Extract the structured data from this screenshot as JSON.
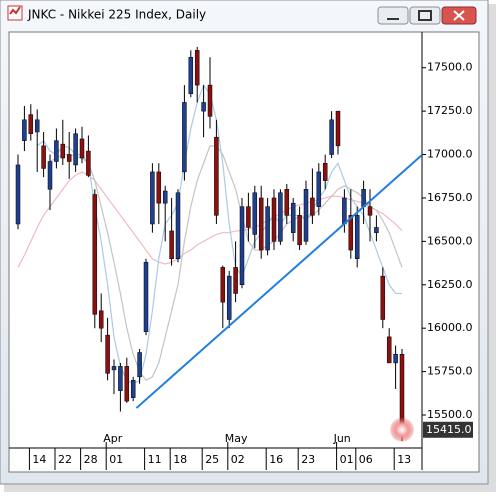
{
  "window": {
    "title": "JNKC - Nikkei 225 Index, Daily"
  },
  "chart_data": {
    "type": "candlestick",
    "categories": [
      null,
      "14",
      null,
      null,
      null,
      "22",
      null,
      null,
      null,
      "28",
      null,
      null,
      null,
      "01",
      null,
      null,
      null,
      null,
      null,
      "11",
      null,
      null,
      null,
      "18",
      null,
      null,
      null,
      null,
      "25",
      null,
      null,
      null,
      "02",
      null,
      null,
      null,
      null,
      null,
      "16",
      null,
      null,
      null,
      null,
      "23",
      null,
      null,
      null,
      null,
      null,
      "01",
      null,
      null,
      "06",
      null,
      null,
      null,
      null,
      null,
      "13",
      null,
      null
    ],
    "months": [
      null,
      null,
      null,
      null,
      null,
      null,
      null,
      null,
      null,
      null,
      null,
      null,
      null,
      "Apr",
      null,
      null,
      null,
      null,
      null,
      null,
      null,
      null,
      null,
      null,
      null,
      null,
      null,
      null,
      null,
      null,
      null,
      null,
      "May",
      null,
      null,
      null,
      null,
      null,
      null,
      null,
      null,
      null,
      null,
      null,
      null,
      null,
      null,
      null,
      null,
      "Jun",
      null,
      null,
      null,
      null,
      null,
      null,
      null,
      null,
      null,
      null,
      null
    ],
    "open": [
      16600,
      17080,
      17230,
      17130,
      17050,
      16800,
      16960,
      17060,
      17000,
      16940,
      17090,
      17020,
      16770,
      16100,
      15960,
      15760,
      15640,
      15780,
      15600,
      15720,
      15980,
      16600,
      16900,
      16720,
      16560,
      16400,
      16900,
      17350,
      17600,
      17250,
      17400,
      17100,
      16350,
      16050,
      16350,
      16250,
      16700,
      16540,
      16750,
      16450,
      16750,
      16500,
      16800,
      16550,
      16650,
      16500,
      16750,
      16700,
      16950,
      17000,
      17250,
      16600,
      16650,
      16400,
      16700,
      16700,
      16550,
      16300,
      15950,
      15800,
      15850
    ],
    "high": [
      17000,
      17280,
      17290,
      17260,
      17130,
      17000,
      17150,
      17200,
      17130,
      17150,
      17160,
      17110,
      16800,
      16200,
      16060,
      15820,
      15800,
      15830,
      15720,
      15880,
      16400,
      16950,
      16950,
      16820,
      16750,
      16800,
      17400,
      17600,
      17620,
      17400,
      17560,
      17200,
      16360,
      16330,
      16500,
      16750,
      16780,
      16820,
      16820,
      16750,
      16800,
      16800,
      16830,
      16750,
      16700,
      16850,
      16920,
      16950,
      17000,
      17250,
      17250,
      16800,
      16800,
      16700,
      16850,
      16800,
      16650,
      16350,
      16000,
      15900,
      15880
    ],
    "low": [
      16570,
      17020,
      17080,
      16900,
      16870,
      16680,
      16920,
      16940,
      16860,
      16900,
      16950,
      16870,
      16000,
      15920,
      15700,
      15620,
      15520,
      15570,
      15580,
      15680,
      15960,
      16550,
      16600,
      16500,
      16360,
      16380,
      16850,
      17330,
      17300,
      17100,
      17150,
      16600,
      16000,
      16000,
      16150,
      16230,
      16500,
      16460,
      16400,
      16420,
      16450,
      16480,
      16600,
      16500,
      16450,
      16480,
      16600,
      16650,
      16800,
      16980,
      17000,
      16550,
      16400,
      16350,
      16600,
      16500,
      16500,
      16000,
      15800,
      15650,
      15350
    ],
    "close": [
      16940,
      17200,
      17120,
      17200,
      16920,
      16960,
      17080,
      16980,
      16960,
      17120,
      16980,
      16880,
      16080,
      16000,
      15740,
      15780,
      15780,
      15580,
      15700,
      15860,
      16380,
      16900,
      16720,
      16790,
      16400,
      16780,
      17300,
      17560,
      17400,
      17300,
      17220,
      16650,
      16150,
      16300,
      16200,
      16700,
      16580,
      16780,
      16450,
      16700,
      16500,
      16780,
      16650,
      16720,
      16480,
      16800,
      16650,
      16900,
      16850,
      17200,
      17050,
      16750,
      16450,
      16650,
      16800,
      16650,
      16580,
      16050,
      15800,
      15850,
      15415
    ],
    "up_color": "#1f3f8f",
    "down_color": "#8b1010",
    "series": [
      {
        "color": "#f2b8c6",
        "values": [
          16350,
          16420,
          16500,
          16580,
          16650,
          16700,
          16750,
          16800,
          16850,
          16880,
          16900,
          16880,
          16850,
          16800,
          16750,
          16700,
          16650,
          16600,
          16550,
          16500,
          16450,
          16400,
          16380,
          16370,
          16380,
          16400,
          16430,
          16450,
          16480,
          16500,
          16520,
          16540,
          16550,
          16550,
          16560,
          16560,
          16570,
          16580,
          16600,
          16620,
          16640,
          16660,
          16680,
          16700,
          16710,
          16720,
          16730,
          16740,
          16750,
          16760,
          16760,
          16750,
          16740,
          16730,
          16720,
          16700,
          16680,
          16660,
          16630,
          16600,
          16560
        ]
      },
      {
        "color": "#c4c4c4",
        "values": [
          null,
          null,
          null,
          null,
          null,
          16960,
          16980,
          17000,
          17000,
          16990,
          16980,
          16950,
          16850,
          16700,
          16550,
          16380,
          16200,
          16000,
          15850,
          15750,
          15700,
          15720,
          15800,
          15950,
          16100,
          16250,
          16500,
          16700,
          16850,
          16950,
          17050,
          17050,
          17000,
          16900,
          16800,
          16650,
          16500,
          16450,
          16450,
          16480,
          16500,
          16550,
          16600,
          16620,
          16650,
          16630,
          16650,
          16680,
          16720,
          16760,
          16800,
          16820,
          16800,
          16780,
          16750,
          16700,
          16680,
          16620,
          16550,
          16450,
          16350
        ]
      },
      {
        "color": "#a9cbe6",
        "values": [
          null,
          null,
          null,
          17050,
          17080,
          17020,
          17000,
          17050,
          17040,
          17000,
          17000,
          16950,
          16700,
          16500,
          16250,
          15950,
          15780,
          15700,
          15680,
          15700,
          15850,
          16100,
          16400,
          16600,
          16650,
          16720,
          16950,
          17150,
          17300,
          17400,
          17350,
          17200,
          16950,
          16600,
          16350,
          16300,
          16400,
          16500,
          16550,
          16600,
          16650,
          16600,
          16650,
          16650,
          16650,
          16620,
          16680,
          16750,
          16800,
          16900,
          16950,
          16850,
          16750,
          16700,
          16650,
          16550,
          16450,
          16350,
          16250,
          16200,
          16200
        ]
      }
    ],
    "trendline": {
      "color": "#1e7fe0",
      "x": [
        18.5,
        63.2
      ],
      "y": [
        15540,
        17000
      ]
    },
    "last_price": {
      "value": 15415,
      "label": "15415.0"
    },
    "ylim": [
      15310,
      17700
    ],
    "yticks": [
      {
        "value": 15500,
        "label": "15500.0"
      },
      {
        "value": 15750,
        "label": "15750.0"
      },
      {
        "value": 16000,
        "label": "16000.0"
      },
      {
        "value": 16250,
        "label": "16250.0"
      },
      {
        "value": 16500,
        "label": "16500.0"
      },
      {
        "value": 16750,
        "label": "16750.0"
      },
      {
        "value": 17000,
        "label": "17000.0"
      },
      {
        "value": 17250,
        "label": "17250.0"
      },
      {
        "value": 17500,
        "label": "17500.0"
      }
    ]
  }
}
